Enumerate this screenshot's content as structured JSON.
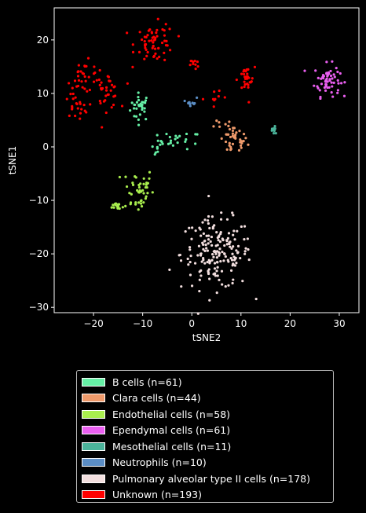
{
  "chart_data": {
    "type": "scatter",
    "xlabel": "tSNE2",
    "ylabel": "tSNE1",
    "xlim": [
      -28,
      34
    ],
    "ylim": [
      -31,
      26
    ],
    "xticks": [
      -20,
      -10,
      0,
      10,
      20,
      30
    ],
    "yticks": [
      -30,
      -20,
      -10,
      0,
      10,
      20
    ],
    "grid": false,
    "legend_position": "below",
    "series": [
      {
        "name": "B cells (n=61)",
        "color": "#66f0a6",
        "clusters": [
          {
            "cx": -10.5,
            "cy": 7.5,
            "sx": 1.0,
            "sy": 1.3,
            "n": 30
          },
          {
            "cx": -2.5,
            "cy": 1.2,
            "sx": 2.2,
            "sy": 0.8,
            "n": 24
          },
          {
            "cx": -7.5,
            "cy": -0.5,
            "sx": 0.7,
            "sy": 0.6,
            "n": 7
          }
        ]
      },
      {
        "name": "Clara cells (n=44)",
        "color": "#ef9a6b",
        "clusters": [
          {
            "cx": 8.5,
            "cy": 1.2,
            "sx": 1.4,
            "sy": 1.4,
            "n": 40
          },
          {
            "cx": 5.0,
            "cy": 4.2,
            "sx": 0.5,
            "sy": 0.5,
            "n": 4
          }
        ]
      },
      {
        "name": "Endothelial cells (n=58)",
        "color": "#a9ee4e",
        "clusters": [
          {
            "cx": -11.0,
            "cy": -8.0,
            "sx": 1.6,
            "sy": 2.2,
            "n": 45
          },
          {
            "cx": -15.0,
            "cy": -11.0,
            "sx": 0.6,
            "sy": 0.4,
            "n": 13
          }
        ]
      },
      {
        "name": "Ependymal cells (n=61)",
        "color": "#ea5ff0",
        "clusters": [
          {
            "cx": 27.5,
            "cy": 12.5,
            "sx": 1.3,
            "sy": 1.5,
            "n": 61
          }
        ]
      },
      {
        "name": "Mesothelial cells (n=11)",
        "color": "#4bb39a",
        "clusters": [
          {
            "cx": 16.8,
            "cy": 3.0,
            "sx": 0.6,
            "sy": 0.5,
            "n": 11
          }
        ]
      },
      {
        "name": "Neutrophils (n=10)",
        "color": "#5b8dc4",
        "clusters": [
          {
            "cx": 0.0,
            "cy": 8.5,
            "sx": 0.5,
            "sy": 0.4,
            "n": 10
          }
        ]
      },
      {
        "name": "Pulmonary alveolar type II cells (n=178)",
        "color": "#f2dede",
        "clusters": [
          {
            "cx": 5.0,
            "cy": -20.0,
            "sx": 3.6,
            "sy": 3.3,
            "n": 178
          }
        ]
      },
      {
        "name": "Unknown (n=193)",
        "color": "#ff0000",
        "clusters": [
          {
            "cx": -7.5,
            "cy": 19.5,
            "sx": 2.0,
            "sy": 1.8,
            "n": 60
          },
          {
            "cx": -22.0,
            "cy": 13.0,
            "sx": 1.6,
            "sy": 1.5,
            "n": 30
          },
          {
            "cx": -17.5,
            "cy": 10.5,
            "sx": 1.4,
            "sy": 1.7,
            "n": 35
          },
          {
            "cx": -23.5,
            "cy": 7.5,
            "sx": 1.2,
            "sy": 1.0,
            "n": 20
          },
          {
            "cx": 11.0,
            "cy": 12.5,
            "sx": 0.9,
            "sy": 1.2,
            "n": 28
          },
          {
            "cx": 0.5,
            "cy": 15.5,
            "sx": 0.4,
            "sy": 0.5,
            "n": 10
          },
          {
            "cx": 5.5,
            "cy": 9.0,
            "sx": 3.5,
            "sy": 1.5,
            "n": 10
          }
        ]
      }
    ]
  }
}
